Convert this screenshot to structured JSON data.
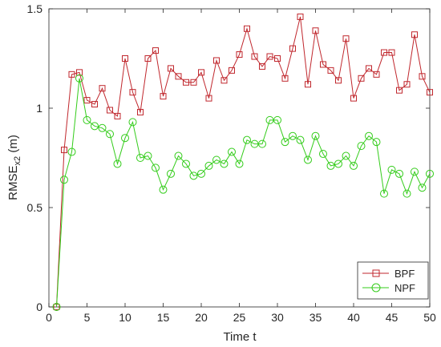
{
  "chart_data": {
    "type": "line",
    "title": "",
    "xlabel": "Time t",
    "ylabel_main": "RMSE",
    "ylabel_sub": "x2",
    "ylabel_unit": " (m)",
    "xlim": [
      0,
      50
    ],
    "ylim": [
      0,
      1.5
    ],
    "xticks": [
      0,
      5,
      10,
      15,
      20,
      25,
      30,
      35,
      40,
      45,
      50
    ],
    "yticks": [
      0,
      0.5,
      1,
      1.5
    ],
    "ytick_labels": [
      "0",
      "0.5",
      "1",
      "1.5"
    ],
    "grid": false,
    "legend_position": "bottom-right",
    "x": [
      1,
      2,
      3,
      4,
      5,
      6,
      7,
      8,
      9,
      10,
      11,
      12,
      13,
      14,
      15,
      16,
      17,
      18,
      19,
      20,
      21,
      22,
      23,
      24,
      25,
      26,
      27,
      28,
      29,
      30,
      31,
      32,
      33,
      34,
      35,
      36,
      37,
      38,
      39,
      40,
      41,
      42,
      43,
      44,
      45,
      46,
      47,
      48,
      49,
      50
    ],
    "series": [
      {
        "name": "BPF",
        "color": "#c0272d",
        "marker": "square",
        "values": [
          0,
          0.79,
          1.17,
          1.18,
          1.04,
          1.02,
          1.1,
          0.99,
          0.96,
          1.25,
          1.08,
          0.98,
          1.25,
          1.29,
          1.06,
          1.2,
          1.16,
          1.13,
          1.13,
          1.18,
          1.05,
          1.24,
          1.14,
          1.19,
          1.27,
          1.4,
          1.26,
          1.21,
          1.26,
          1.25,
          1.15,
          1.3,
          1.46,
          1.12,
          1.39,
          1.22,
          1.19,
          1.14,
          1.35,
          1.05,
          1.15,
          1.2,
          1.17,
          1.28,
          1.28,
          1.09,
          1.12,
          1.37,
          1.16,
          1.08
        ]
      },
      {
        "name": "NPF",
        "color": "#33cc1a",
        "marker": "circle",
        "values": [
          0,
          0.64,
          0.78,
          1.15,
          0.94,
          0.91,
          0.9,
          0.87,
          0.72,
          0.85,
          0.93,
          0.75,
          0.76,
          0.7,
          0.59,
          0.67,
          0.76,
          0.72,
          0.66,
          0.67,
          0.71,
          0.74,
          0.72,
          0.78,
          0.72,
          0.84,
          0.82,
          0.82,
          0.94,
          0.94,
          0.83,
          0.86,
          0.84,
          0.74,
          0.86,
          0.77,
          0.71,
          0.72,
          0.76,
          0.71,
          0.81,
          0.86,
          0.83,
          0.57,
          0.69,
          0.67,
          0.57,
          0.68,
          0.6,
          0.67
        ]
      }
    ]
  }
}
